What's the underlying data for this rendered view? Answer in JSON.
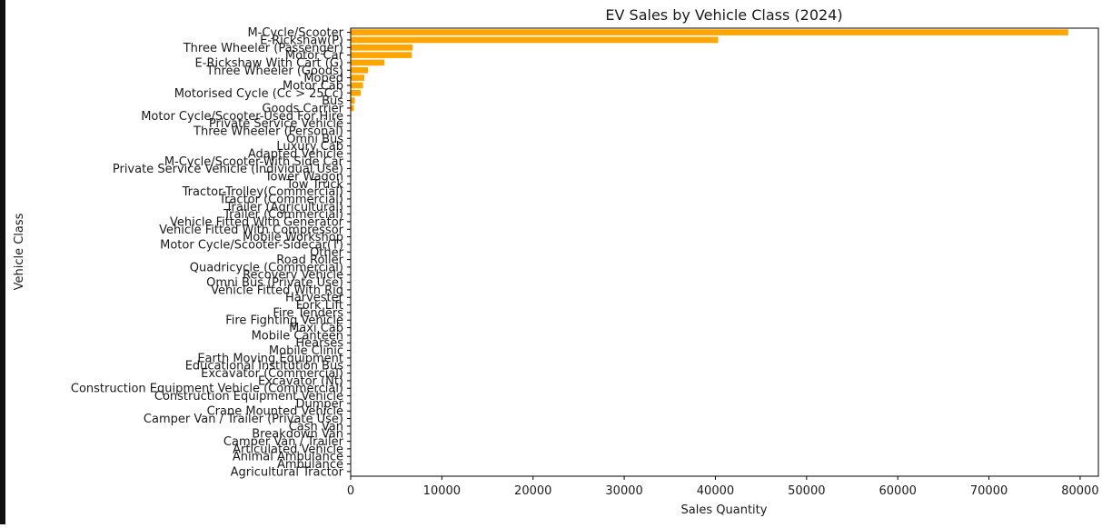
{
  "chart_data": {
    "type": "bar",
    "orientation": "horizontal",
    "title": "EV Sales by Vehicle Class (2024)",
    "xlabel": "Sales Quantity",
    "ylabel": "Vehicle Class",
    "xlim": [
      0,
      82000
    ],
    "xticks": [
      0,
      10000,
      20000,
      30000,
      40000,
      50000,
      60000,
      70000,
      80000
    ],
    "grid": false,
    "bar_color": "#ffa500",
    "categories": [
      "M-Cycle/Scooter",
      "E-Rickshaw(P)",
      "Three Wheeler (Passenger)",
      "Motor Car",
      "E-Rickshaw With Cart (G)",
      "Three Wheeler (Goods)",
      "Moped",
      "Motor Cab",
      "Motorised Cycle (Cc > 25Cc)",
      "Bus",
      "Goods Carrier",
      "Motor Cycle/Scooter-Used For Hire",
      "Private Service Vehicle",
      "Three Wheeler (Personal)",
      "Omni Bus",
      "Luxury Cab",
      "Adapted Vehicle",
      "M-Cycle/Scooter-With Side Car",
      "Private Service Vehicle (Individual Use)",
      "Tower Wagon",
      "Tow Truck",
      "Tractor-Trolley(Commercial)",
      "Tractor (Commercial)",
      "Trailer (Agricultural)",
      "Trailer (Commercial)",
      "Vehicle Fitted With Generator",
      "Vehicle Fitted With Compressor",
      "Mobile Workshop",
      "Motor Cycle/Scooter-Sidecar(T)",
      "Other",
      "Road Roller",
      "Quadricycle (Commercial)",
      "Recovery Vehicle",
      "Omni Bus (Private Use)",
      "Vehicle Fitted With Rig",
      "Harvester",
      "Fork Lift",
      "Fire Tenders",
      "Fire Fighting Vehicle",
      "Maxi Cab",
      "Mobile Canteen",
      "Hearses",
      "Mobile Clinic",
      "Earth Moving Equipment",
      "Educational Institution Bus",
      "Excavator (Commercial)",
      "Excavator (Nt)",
      "Construction Equipment Vehicle (Commercial)",
      "Construction Equipment Vehicle",
      "Dumper",
      "Crane Mounted Vehicle",
      "Camper Van / Trailer (Private Use)",
      "Cash Van",
      "Breakdown Van",
      "Camper Van / Trailer",
      "Articulated Vehicle",
      "Animal Ambulance",
      "Ambulance",
      "Agricultural Tractor"
    ],
    "values": [
      78700,
      40300,
      6800,
      6700,
      3700,
      1900,
      1500,
      1350,
      1100,
      450,
      350,
      60,
      40,
      30,
      20,
      15,
      12,
      10,
      8,
      6,
      5,
      5,
      4,
      4,
      4,
      3,
      3,
      3,
      3,
      2,
      2,
      2,
      2,
      2,
      2,
      1,
      1,
      1,
      1,
      1,
      1,
      1,
      1,
      1,
      1,
      1,
      1,
      1,
      1,
      1,
      1,
      1,
      1,
      1,
      1,
      1,
      1,
      1,
      1
    ]
  }
}
